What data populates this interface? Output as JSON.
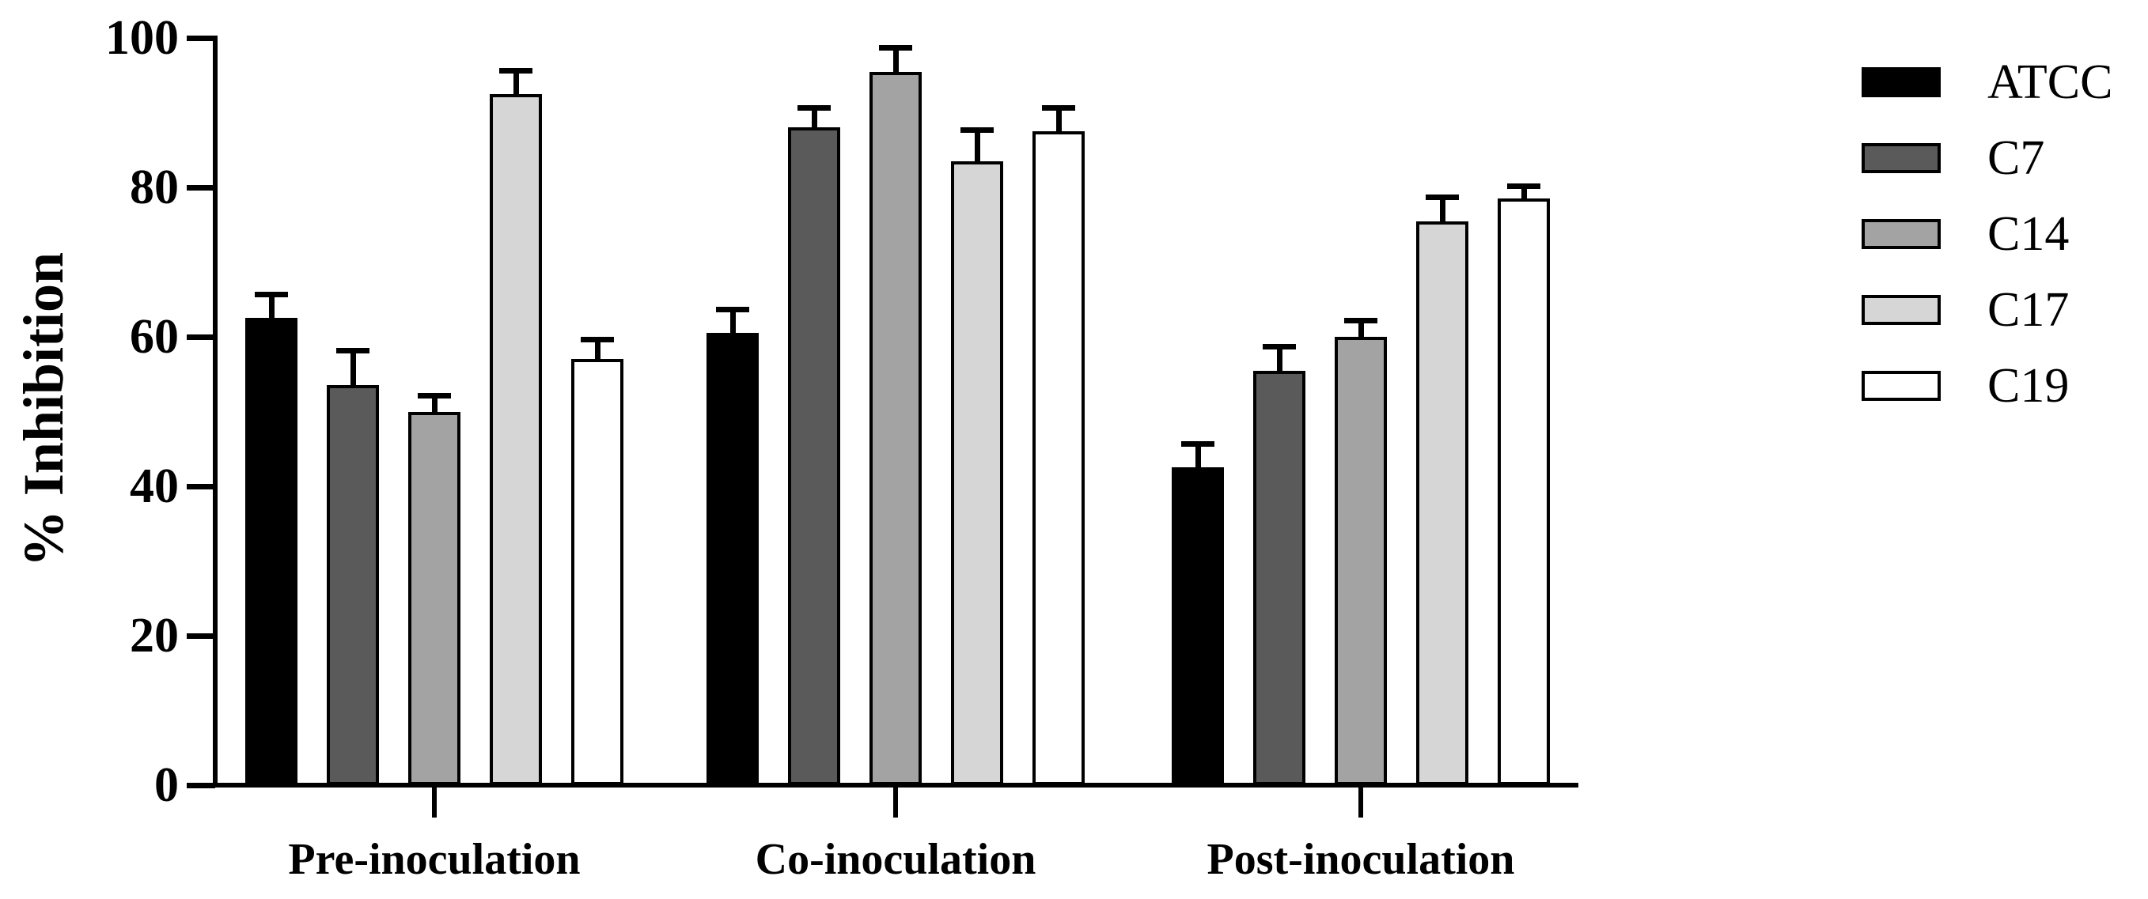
{
  "figure": {
    "background": "#ffffff",
    "axis_color": "#000000"
  },
  "chart_data": {
    "type": "bar",
    "title": "",
    "xlabel": "",
    "ylabel": "% Inhibition",
    "ylim": [
      0,
      100
    ],
    "yticks": [
      0,
      20,
      40,
      60,
      80,
      100
    ],
    "grid": false,
    "error_bars": true,
    "legend_position": "right",
    "categories": [
      "Pre-inoculation",
      "Co-inoculation",
      "Post-inoculation"
    ],
    "series": [
      {
        "name": "ATCC",
        "color": "#000000",
        "values": [
          62.5,
          60.5,
          42.5
        ],
        "errors": [
          3.5,
          3.5,
          3.5
        ]
      },
      {
        "name": "C7",
        "color": "#5a5a5a",
        "values": [
          53.5,
          88.0,
          55.5
        ],
        "errors": [
          5.0,
          3.0,
          3.5
        ]
      },
      {
        "name": "C14",
        "color": "#a3a3a3",
        "values": [
          50.0,
          95.5,
          60.0
        ],
        "errors": [
          2.5,
          3.5,
          2.5
        ]
      },
      {
        "name": "C17",
        "color": "#d6d6d6",
        "values": [
          92.5,
          83.5,
          75.5
        ],
        "errors": [
          3.5,
          4.5,
          3.5
        ]
      },
      {
        "name": "C19",
        "color": "#ffffff",
        "values": [
          57.0,
          87.5,
          78.5
        ],
        "errors": [
          3.0,
          3.5,
          2.0
        ]
      }
    ]
  }
}
